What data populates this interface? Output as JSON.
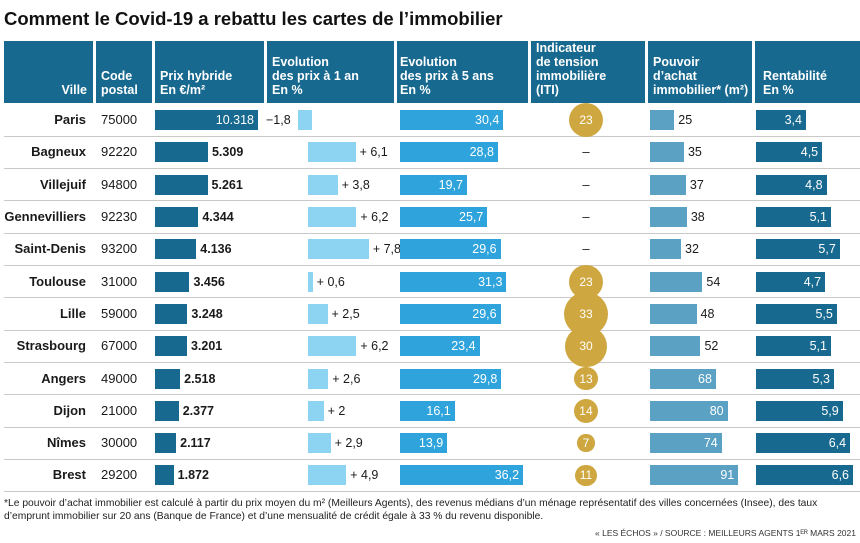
{
  "title": "Comment le Covid-19 a rebattu les cartes de l’immobilier",
  "headers": {
    "ville": "Ville",
    "code": "Code\npostal",
    "prix": "Prix hybride\nEn €/m²",
    "evo1": "Evolution\ndes prix à 1 an\nEn %",
    "evo5": "Evolution\ndes prix à 5 ans\nEn %",
    "iti": "Indicateur\nde tension\nimmobilière\n(ITI)",
    "pouvoir": "Pouvoir\nd’achat\nimmobilier* (m²)",
    "rent": "Rentabilité\nEn %"
  },
  "colors": {
    "header_bg": "#17698f",
    "prix_bar": "#17698f",
    "evo1_bar": "#8dd3f2",
    "evo5_bar": "#2ea3dc",
    "iti_circle": "#cfa740",
    "pouvoir_bar": "#5aa1c4",
    "rent_bar": "#17698f"
  },
  "chart_data": {
    "type": "table",
    "columns": [
      "Ville",
      "Code postal",
      "Prix hybride En €/m²",
      "Evolution des prix à 1 an En %",
      "Evolution des prix à 5 ans En %",
      "Indicateur de tension immobilière (ITI)",
      "Pouvoir d’achat immobilier* (m²)",
      "Rentabilité En %"
    ],
    "rows": [
      {
        "ville": "Paris",
        "code": "75000",
        "prix": 10318,
        "prix_label": "10.318",
        "evo1": -1.8,
        "evo1_label": "−1,8",
        "evo5": 30.4,
        "evo5_label": "30,4",
        "iti": 23,
        "iti_label": "23",
        "pouvoir": 25,
        "pouvoir_label": "25",
        "rent": 3.4,
        "rent_label": "3,4"
      },
      {
        "ville": "Bagneux",
        "code": "92220",
        "prix": 5309,
        "prix_label": "5.309",
        "evo1": 6.1,
        "evo1_label": "+ 6,1",
        "evo5": 28.8,
        "evo5_label": "28,8",
        "iti": null,
        "iti_label": "–",
        "pouvoir": 35,
        "pouvoir_label": "35",
        "rent": 4.5,
        "rent_label": "4,5"
      },
      {
        "ville": "Villejuif",
        "code": "94800",
        "prix": 5261,
        "prix_label": "5.261",
        "evo1": 3.8,
        "evo1_label": "+ 3,8",
        "evo5": 19.7,
        "evo5_label": "19,7",
        "iti": null,
        "iti_label": "–",
        "pouvoir": 37,
        "pouvoir_label": "37",
        "rent": 4.8,
        "rent_label": "4,8"
      },
      {
        "ville": "Gennevilliers",
        "code": "92230",
        "prix": 4344,
        "prix_label": "4.344",
        "evo1": 6.2,
        "evo1_label": "+ 6,2",
        "evo5": 25.7,
        "evo5_label": "25,7",
        "iti": null,
        "iti_label": "–",
        "pouvoir": 38,
        "pouvoir_label": "38",
        "rent": 5.1,
        "rent_label": "5,1"
      },
      {
        "ville": "Saint-Denis",
        "code": "93200",
        "prix": 4136,
        "prix_label": "4.136",
        "evo1": 7.8,
        "evo1_label": "+ 7,8",
        "evo5": 29.6,
        "evo5_label": "29,6",
        "iti": null,
        "iti_label": "–",
        "pouvoir": 32,
        "pouvoir_label": "32",
        "rent": 5.7,
        "rent_label": "5,7"
      },
      {
        "ville": "Toulouse",
        "code": "31000",
        "prix": 3456,
        "prix_label": "3.456",
        "evo1": 0.6,
        "evo1_label": "+ 0,6",
        "evo5": 31.3,
        "evo5_label": "31,3",
        "iti": 23,
        "iti_label": "23",
        "pouvoir": 54,
        "pouvoir_label": "54",
        "rent": 4.7,
        "rent_label": "4,7"
      },
      {
        "ville": "Lille",
        "code": "59000",
        "prix": 3248,
        "prix_label": "3.248",
        "evo1": 2.5,
        "evo1_label": "+ 2,5",
        "evo5": 29.6,
        "evo5_label": "29,6",
        "iti": 33,
        "iti_label": "33",
        "pouvoir": 48,
        "pouvoir_label": "48",
        "rent": 5.5,
        "rent_label": "5,5"
      },
      {
        "ville": "Strasbourg",
        "code": "67000",
        "prix": 3201,
        "prix_label": "3.201",
        "evo1": 6.2,
        "evo1_label": "+ 6,2",
        "evo5": 23.4,
        "evo5_label": "23,4",
        "iti": 30,
        "iti_label": "30",
        "pouvoir": 52,
        "pouvoir_label": "52",
        "rent": 5.1,
        "rent_label": "5,1"
      },
      {
        "ville": "Angers",
        "code": "49000",
        "prix": 2518,
        "prix_label": "2.518",
        "evo1": 2.6,
        "evo1_label": "+ 2,6",
        "evo5": 29.8,
        "evo5_label": "29,8",
        "iti": 13,
        "iti_label": "13",
        "pouvoir": 68,
        "pouvoir_label": "68",
        "rent": 5.3,
        "rent_label": "5,3"
      },
      {
        "ville": "Dijon",
        "code": "21000",
        "prix": 2377,
        "prix_label": "2.377",
        "evo1": 2,
        "evo1_label": "+ 2",
        "evo5": 16.1,
        "evo5_label": "16,1",
        "iti": 14,
        "iti_label": "14",
        "pouvoir": 80,
        "pouvoir_label": "80",
        "rent": 5.9,
        "rent_label": "5,9"
      },
      {
        "ville": "Nîmes",
        "code": "30000",
        "prix": 2117,
        "prix_label": "2.117",
        "evo1": 2.9,
        "evo1_label": "+ 2,9",
        "evo5": 13.9,
        "evo5_label": "13,9",
        "iti": 7,
        "iti_label": "7",
        "pouvoir": 74,
        "pouvoir_label": "74",
        "rent": 6.4,
        "rent_label": "6,4"
      },
      {
        "ville": "Brest",
        "code": "29200",
        "prix": 1872,
        "prix_label": "1.872",
        "evo1": 4.9,
        "evo1_label": "+ 4,9",
        "evo5": 36.2,
        "evo5_label": "36,2",
        "iti": 11,
        "iti_label": "11",
        "pouvoir": 91,
        "pouvoir_label": "91",
        "rent": 6.6,
        "rent_label": "6,6"
      }
    ]
  },
  "footnote": "*Le pouvoir d’achat immobilier est calculé à partir du prix moyen du m² (Meilleurs Agents), des revenus médians d’un ménage représentatif des villes concernées (Insee), des taux d’emprunt immobilier sur 20 ans (Banque de France) et d’une mensualité de crédit égale à 33 % du revenu disponible.",
  "source": "« LES ÉCHOS » / SOURCE : MEILLEURS AGENTS 1ᴱᴿ MARS 2021"
}
